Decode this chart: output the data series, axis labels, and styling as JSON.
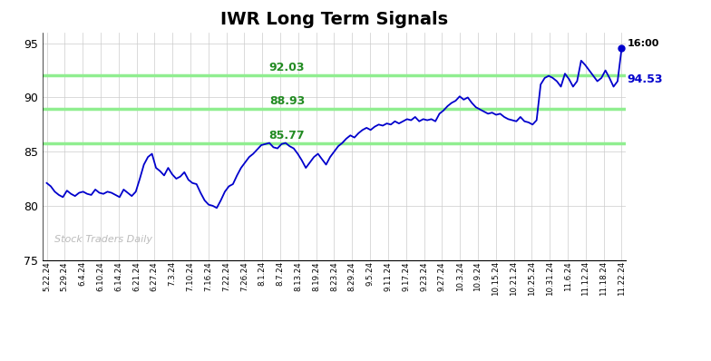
{
  "title": "IWR Long Term Signals",
  "title_fontsize": 14,
  "background_color": "#ffffff",
  "line_color": "#0000cc",
  "line_width": 1.3,
  "ylim": [
    75,
    96
  ],
  "yticks": [
    75,
    80,
    85,
    90,
    95
  ],
  "watermark": "Stock Traders Daily",
  "watermark_color": "#bbbbbb",
  "hlines": [
    85.77,
    88.93,
    92.03
  ],
  "hline_color": "#90ee90",
  "hline_labels": [
    "85.77",
    "88.93",
    "92.03"
  ],
  "hline_label_color": "#228B22",
  "last_price": 94.53,
  "last_time": "16:00",
  "last_label_color_time": "#000000",
  "last_label_color_price": "#0000cc",
  "xtick_labels": [
    "5.22.24",
    "5.29.24",
    "6.4.24",
    "6.10.24",
    "6.14.24",
    "6.21.24",
    "6.27.24",
    "7.3.24",
    "7.10.24",
    "7.16.24",
    "7.22.24",
    "7.26.24",
    "8.1.24",
    "8.7.24",
    "8.13.24",
    "8.19.24",
    "8.23.24",
    "8.29.24",
    "9.5.24",
    "9.11.24",
    "9.17.24",
    "9.23.24",
    "9.27.24",
    "10.3.24",
    "10.9.24",
    "10.15.24",
    "10.21.24",
    "10.25.24",
    "10.31.24",
    "11.6.24",
    "11.12.24",
    "11.18.24",
    "11.22.24"
  ],
  "prices": [
    82.1,
    81.8,
    81.3,
    81.0,
    80.8,
    81.4,
    81.1,
    80.9,
    81.2,
    81.3,
    81.1,
    81.0,
    81.5,
    81.2,
    81.1,
    81.3,
    81.2,
    81.0,
    80.8,
    81.5,
    81.2,
    80.9,
    81.3,
    82.5,
    83.8,
    84.5,
    84.8,
    83.5,
    83.2,
    82.8,
    83.5,
    82.9,
    82.5,
    82.7,
    83.1,
    82.4,
    82.1,
    82.0,
    81.2,
    80.5,
    80.1,
    80.0,
    79.8,
    80.5,
    81.3,
    81.8,
    82.0,
    82.8,
    83.5,
    84.0,
    84.5,
    84.8,
    85.2,
    85.6,
    85.7,
    85.8,
    85.4,
    85.3,
    85.7,
    85.8,
    85.5,
    85.3,
    84.8,
    84.2,
    83.5,
    84.0,
    84.5,
    84.8,
    84.3,
    83.8,
    84.5,
    85.0,
    85.5,
    85.8,
    86.2,
    86.5,
    86.3,
    86.7,
    87.0,
    87.2,
    87.0,
    87.3,
    87.5,
    87.4,
    87.6,
    87.5,
    87.8,
    87.6,
    87.8,
    88.0,
    87.9,
    88.2,
    87.8,
    88.0,
    87.9,
    88.0,
    87.8,
    88.5,
    88.8,
    89.2,
    89.5,
    89.7,
    90.1,
    89.8,
    90.0,
    89.5,
    89.1,
    88.9,
    88.7,
    88.5,
    88.6,
    88.4,
    88.5,
    88.2,
    88.0,
    87.9,
    87.8,
    88.2,
    87.8,
    87.7,
    87.5,
    87.9,
    91.2,
    91.8,
    92.0,
    91.8,
    91.5,
    91.0,
    92.2,
    91.7,
    91.0,
    91.5,
    93.4,
    93.0,
    92.5,
    92.0,
    91.5,
    91.8,
    92.5,
    91.8,
    91.0,
    91.5,
    94.53
  ]
}
